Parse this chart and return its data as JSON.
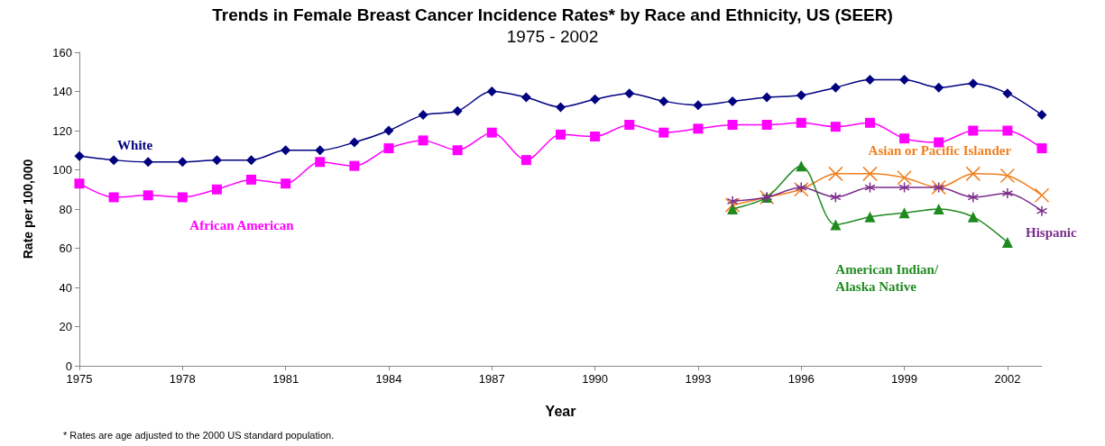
{
  "chart_data": {
    "type": "line",
    "title": "Trends in Female Breast Cancer Incidence Rates* by Race and Ethnicity, US (SEER)",
    "subtitle": "1975 - 2002",
    "xlabel": "Year",
    "ylabel": "Rate per 100,000",
    "annotations": [
      "* Rates are age adjusted to the 2000 US standard population."
    ],
    "categories": [
      "1975",
      null,
      null,
      "1978",
      null,
      null,
      "1981",
      null,
      null,
      "1984",
      null,
      null,
      "1987",
      null,
      null,
      "1990",
      null,
      null,
      "1993",
      null,
      null,
      "1996",
      null,
      null,
      "1999",
      null,
      null,
      "2002",
      null
    ],
    "ylim": [
      0,
      160
    ],
    "yticks": [
      0,
      20,
      40,
      60,
      80,
      100,
      120,
      140,
      160
    ],
    "grid": false,
    "legend": false,
    "series": [
      {
        "name": "White",
        "color": "#000080",
        "marker": "diamond",
        "values": [
          107,
          105,
          104,
          104,
          105,
          105,
          110,
          110,
          114,
          120,
          128,
          130,
          140,
          137,
          132,
          136,
          139,
          135,
          133,
          135,
          137,
          138,
          142,
          146,
          146,
          142,
          144,
          139,
          128
        ]
      },
      {
        "name": "African American",
        "color": "#ff00ff",
        "marker": "square",
        "values": [
          93,
          86,
          87,
          86,
          90,
          95,
          93,
          104,
          102,
          111,
          115,
          110,
          119,
          105,
          118,
          117,
          123,
          119,
          121,
          123,
          123,
          124,
          122,
          124,
          116,
          114,
          120,
          120,
          111
        ]
      },
      {
        "name": "Asian or Pacific Islander",
        "color": "#f07f1e",
        "marker": "cross",
        "values": [
          null,
          null,
          null,
          null,
          null,
          null,
          null,
          null,
          null,
          null,
          null,
          null,
          null,
          null,
          null,
          null,
          null,
          null,
          null,
          82,
          86,
          90,
          98,
          98,
          96,
          91,
          98,
          97,
          87
        ]
      },
      {
        "name": "American Indian/ Alaska Native",
        "color": "#1f8a1f",
        "marker": "triangle",
        "values": [
          null,
          null,
          null,
          null,
          null,
          null,
          null,
          null,
          null,
          null,
          null,
          null,
          null,
          null,
          null,
          null,
          null,
          null,
          null,
          80,
          86,
          102,
          72,
          76,
          78,
          80,
          76,
          63,
          null
        ]
      },
      {
        "name": "Hispanic",
        "color": "#7b2d8b",
        "marker": "cross",
        "values": [
          null,
          null,
          null,
          null,
          null,
          null,
          null,
          null,
          null,
          null,
          null,
          null,
          null,
          null,
          null,
          null,
          null,
          null,
          null,
          84,
          86,
          91,
          86,
          91,
          91,
          91,
          86,
          88,
          79
        ]
      }
    ]
  }
}
